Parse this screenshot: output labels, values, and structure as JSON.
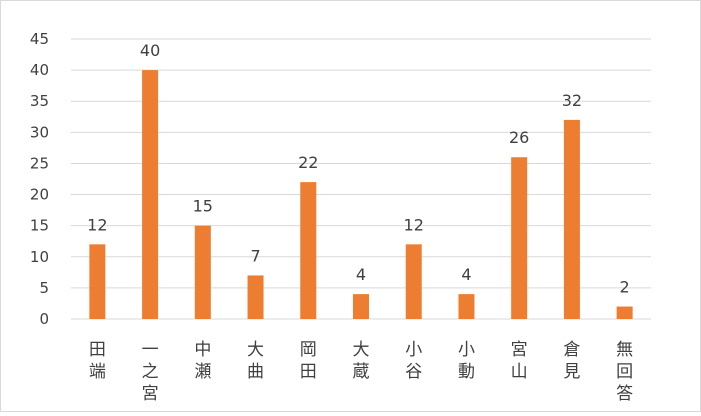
{
  "chart_data": {
    "type": "bar",
    "categories": [
      "田端",
      "一之宮",
      "中瀬",
      "大曲",
      "岡田",
      "大蔵",
      "小谷",
      "小動",
      "宮山",
      "倉見",
      "無回答"
    ],
    "values": [
      12,
      40,
      15,
      7,
      22,
      4,
      12,
      4,
      26,
      32,
      2
    ],
    "data_labels": [
      "12",
      "40",
      "15",
      "7",
      "22",
      "4",
      "12",
      "4",
      "26",
      "32",
      "2"
    ],
    "y_ticks": [
      "0",
      "5",
      "10",
      "15",
      "20",
      "25",
      "30",
      "35",
      "40",
      "45"
    ],
    "ylim": [
      0,
      45
    ],
    "grid": true,
    "legend": "none",
    "title": "",
    "xlabel": "",
    "ylabel": "",
    "bar_color": "#ED7D31",
    "grid_color": "#D9D9D9",
    "text_color": "#404040"
  }
}
